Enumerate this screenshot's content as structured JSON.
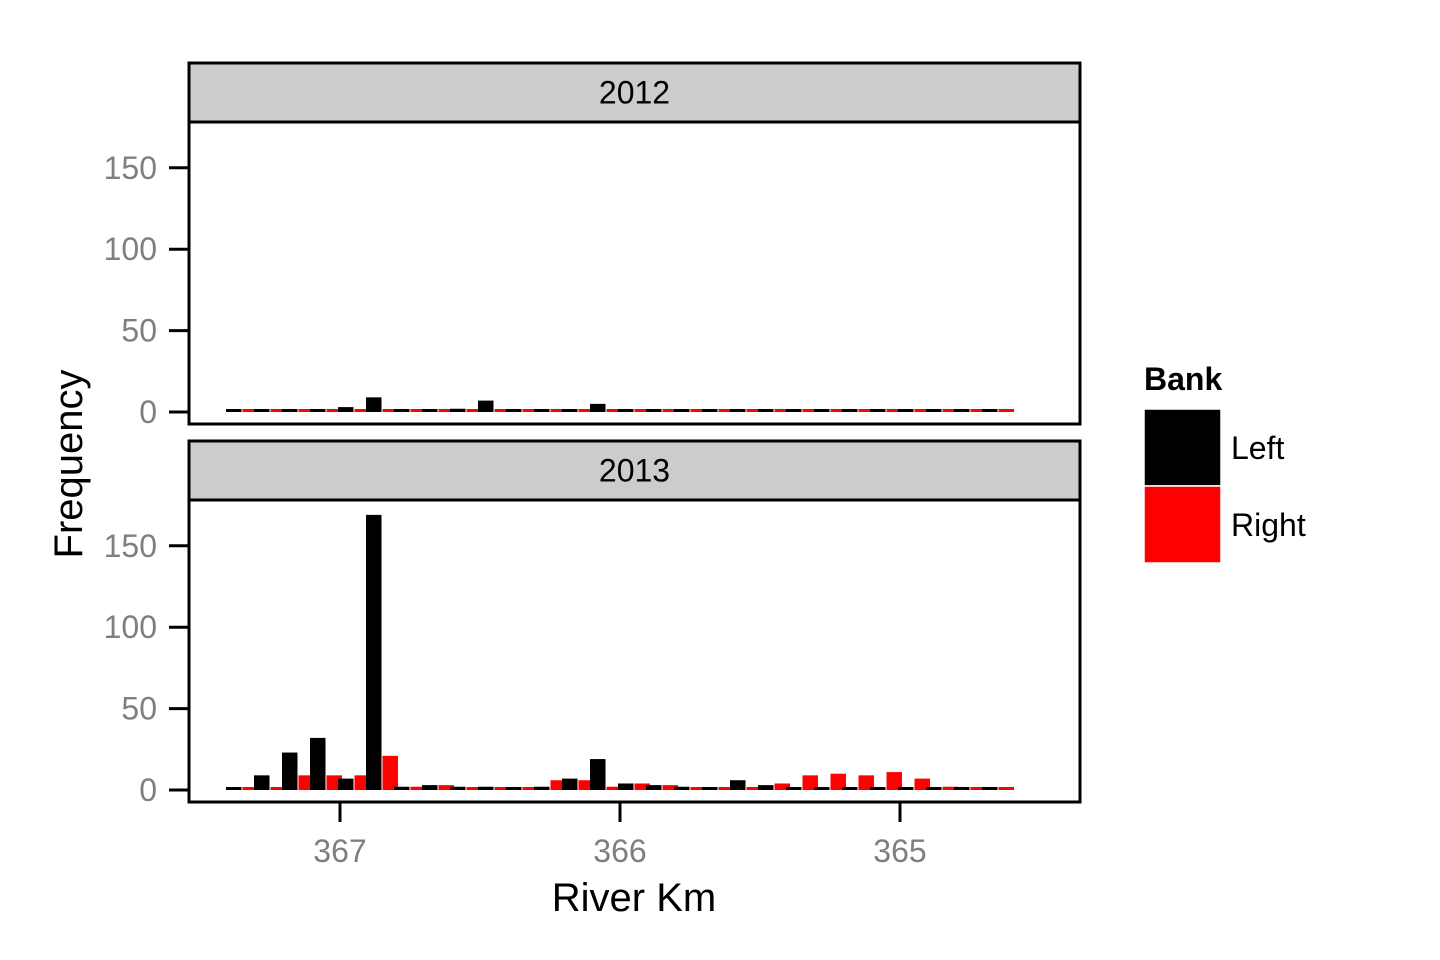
{
  "chart_data": {
    "type": "bar",
    "x_label": "River Km",
    "y_label": "Frequency",
    "x_range": [
      367.55,
      364.45
    ],
    "x_ticks": [
      "367",
      "366",
      "365"
    ],
    "y_ticks": [
      "0",
      "50",
      "100",
      "150"
    ],
    "y_range": [
      0,
      178
    ],
    "grid": false,
    "legend": {
      "title": "Bank",
      "position": "right",
      "items": [
        {
          "label": "Left",
          "color": "#000000"
        },
        {
          "label": "Right",
          "color": "#ff0000"
        }
      ]
    },
    "bin_width": 0.1,
    "bin_centers": [
      367.35,
      367.25,
      367.15,
      367.05,
      366.95,
      366.85,
      366.75,
      366.65,
      366.55,
      366.45,
      366.35,
      366.25,
      366.15,
      366.05,
      365.95,
      365.85,
      365.75,
      365.65,
      365.55,
      365.45,
      365.35,
      365.25,
      365.15,
      365.05,
      364.95,
      364.85,
      364.75,
      364.65
    ],
    "panels": [
      {
        "strip_label": "2012",
        "series": [
          {
            "name": "Left",
            "values": [
              0,
              0,
              1,
              0,
              3,
              9,
              0,
              0,
              2,
              7,
              0,
              0,
              0,
              5,
              1,
              0,
              1,
              0,
              0,
              1,
              0,
              0,
              0,
              0,
              0,
              0,
              0,
              0
            ]
          },
          {
            "name": "Right",
            "values": [
              0,
              0,
              0,
              0,
              0,
              0,
              0,
              0,
              0,
              0,
              0,
              0,
              0,
              0,
              0,
              0,
              0,
              0,
              0,
              1,
              0,
              1,
              0,
              0,
              0,
              0,
              0,
              0
            ]
          }
        ]
      },
      {
        "strip_label": "2013",
        "series": [
          {
            "name": "Left",
            "values": [
              0,
              9,
              23,
              32,
              7,
              169,
              2,
              3,
              2,
              2,
              0,
              2,
              7,
              19,
              4,
              3,
              2,
              0,
              6,
              3,
              0,
              0,
              0,
              0,
              0,
              0,
              0,
              0
            ]
          },
          {
            "name": "Right",
            "values": [
              1,
              1,
              9,
              9,
              9,
              21,
              2,
              3,
              1,
              0,
              1,
              6,
              6,
              2,
              4,
              3,
              1,
              1,
              1,
              4,
              9,
              10,
              9,
              11,
              7,
              2,
              1,
              1
            ]
          }
        ]
      }
    ]
  }
}
